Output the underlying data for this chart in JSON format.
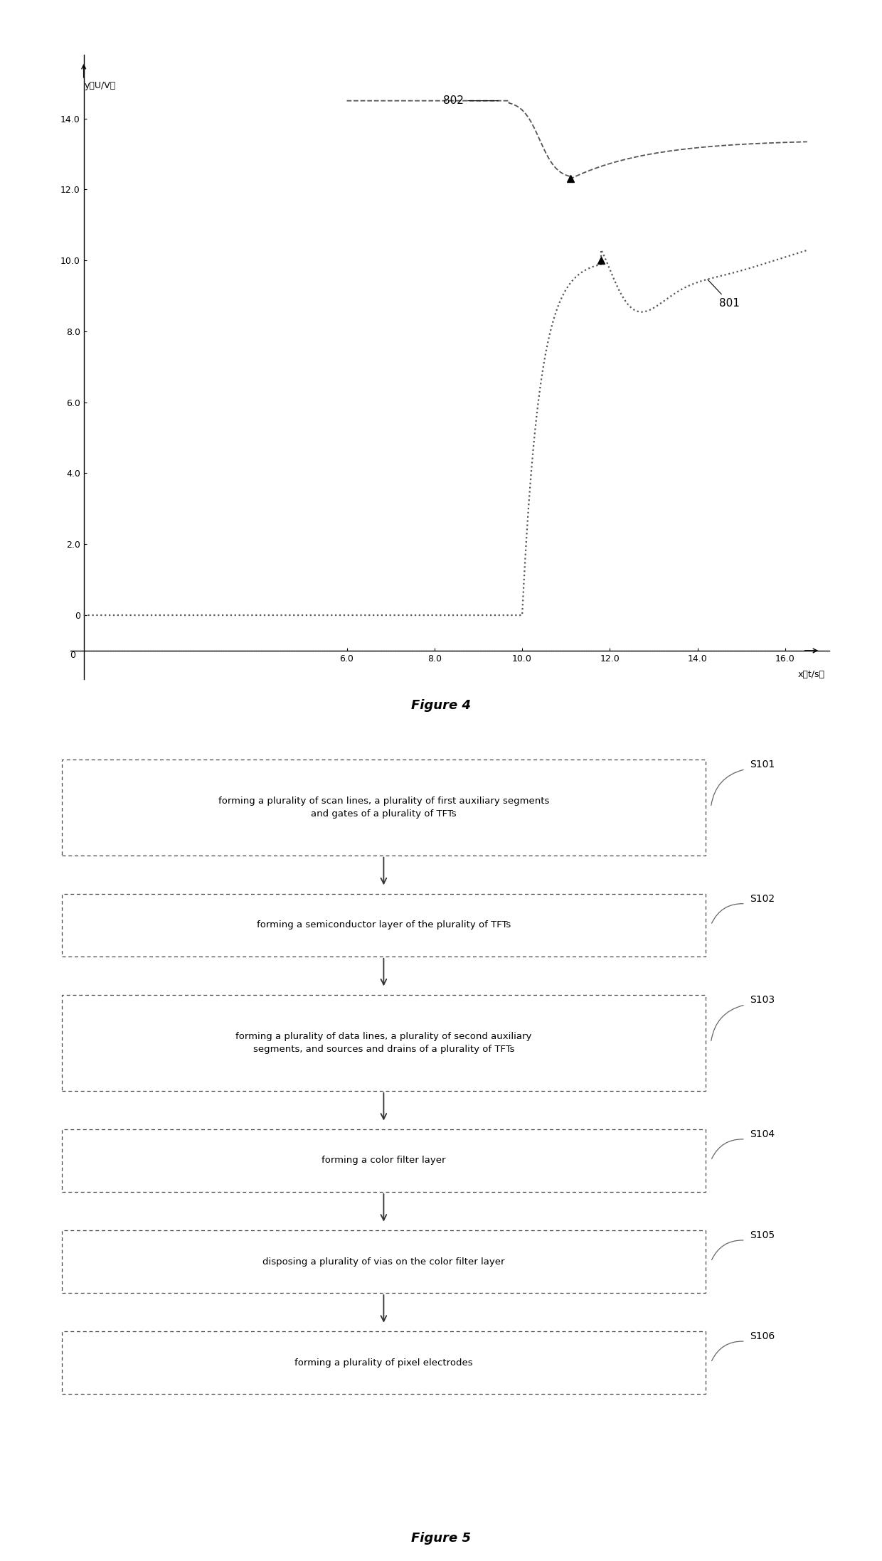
{
  "fig4": {
    "ylabel": "y（U/V）",
    "xlabel": "x（t/s）",
    "xlim": [
      -0.3,
      17.0
    ],
    "ylim": [
      -1.8,
      15.8
    ],
    "ytick_vals": [
      0,
      2.0,
      4.0,
      6.0,
      8.0,
      10.0,
      12.0,
      14.0
    ],
    "ytick_labels": [
      "0",
      "2.0",
      "4.0",
      "6.0",
      "8.0",
      "10.0",
      "12.0",
      "14.0"
    ],
    "xtick_vals": [
      6.0,
      8.0,
      10.0,
      12.0,
      14.0,
      16.0
    ],
    "xtick_labels": [
      "6.0",
      "8.0",
      "10.0",
      "12.0",
      "14.0",
      "16.0"
    ],
    "label_802": "802",
    "label_801": "801",
    "figure_title": "Figure 4"
  },
  "fig5": {
    "figure_title": "Figure 5",
    "steps": [
      {
        "label": "S101",
        "text": "forming a plurality of scan lines, a plurality of first auxiliary segments\nand gates of a plurality of TFTs"
      },
      {
        "label": "S102",
        "text": "forming a semiconductor layer of the plurality of TFTs"
      },
      {
        "label": "S103",
        "text": "forming a plurality of data lines, a plurality of second auxiliary\nsegments, and sources and drains of a plurality of TFTs"
      },
      {
        "label": "S104",
        "text": "forming a color filter layer"
      },
      {
        "label": "S105",
        "text": "disposing a plurality of vias on the color filter layer"
      },
      {
        "label": "S106",
        "text": "forming a plurality of pixel electrodes"
      }
    ]
  }
}
